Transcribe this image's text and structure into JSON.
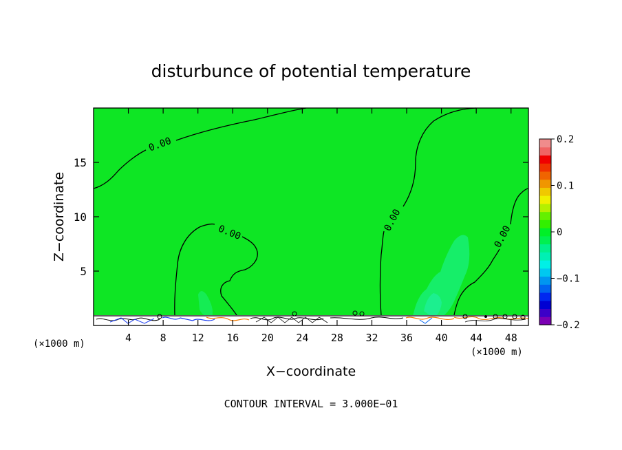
{
  "chart_data": {
    "type": "heatmap",
    "title": "disturbunce of potential temperature",
    "xlabel": "X−coordinate",
    "ylabel": "Z−coordinate",
    "x_unit_label": "(×1000 m)",
    "x_ticks": [
      4,
      8,
      12,
      16,
      20,
      24,
      28,
      32,
      36,
      40,
      44,
      48
    ],
    "y_ticks": [
      5,
      10,
      15
    ],
    "xlim": [
      0,
      50
    ],
    "ylim": [
      0,
      20
    ],
    "contour_interval_text": "CONTOUR INTERVAL = 3.000E−01",
    "contour_label": "0.00",
    "colorbar": {
      "range": [
        -0.2,
        0.2
      ],
      "tick_labels": [
        "0.2",
        "0.1",
        "0",
        "−0.1",
        "−0.2"
      ],
      "tick_values": [
        0.2,
        0.1,
        0,
        -0.1,
        -0.2
      ],
      "colors": [
        "#7b00b4",
        "#3c00c8",
        "#0000d2",
        "#0028f0",
        "#0064f0",
        "#0096f0",
        "#00c8f0",
        "#00f0e6",
        "#00f0b4",
        "#00f08c",
        "#00f050",
        "#00f028",
        "#32f000",
        "#64f000",
        "#b4f000",
        "#f0f000",
        "#f0c800",
        "#f09600",
        "#f06400",
        "#f03200",
        "#f00000",
        "#f06464",
        "#f08c8c"
      ]
    },
    "background_value_color": "#00f028"
  }
}
